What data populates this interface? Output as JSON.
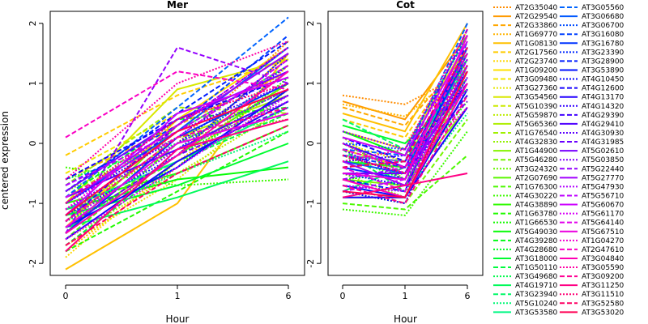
{
  "chart_data": {
    "type": "line",
    "ylabel": "centered expression",
    "xlabel": "Hour",
    "x_ticks": [
      "0",
      "1",
      "6"
    ],
    "y_ticks": [
      "-2",
      "-1",
      "0",
      "1",
      "2"
    ],
    "ylim": [
      -2.2,
      2.2
    ],
    "grid": false,
    "legend_placement": "right",
    "panels": [
      {
        "title": "Mer"
      },
      {
        "title": "Cot"
      }
    ],
    "legend_col1": [
      {
        "label": "AT2G35040",
        "color": "#ff8c00",
        "dash": "dotted"
      },
      {
        "label": "AT2G29540",
        "color": "#ff9a00",
        "dash": "solid"
      },
      {
        "label": "AT2G33860",
        "color": "#ffa800",
        "dash": "dashed"
      },
      {
        "label": "AT1G69770",
        "color": "#ffb400",
        "dash": "dotted"
      },
      {
        "label": "AT1G08130",
        "color": "#ffc000",
        "dash": "solid"
      },
      {
        "label": "AT2G17560",
        "color": "#ffcc00",
        "dash": "dashed"
      },
      {
        "label": "AT2G23740",
        "color": "#ffd700",
        "dash": "dotted"
      },
      {
        "label": "AT1G09200",
        "color": "#ffe000",
        "dash": "solid"
      },
      {
        "label": "AT3G09480",
        "color": "#f2e600",
        "dash": "dashed"
      },
      {
        "label": "AT3G27360",
        "color": "#e6e600",
        "dash": "dotted"
      },
      {
        "label": "AT3G54560",
        "color": "#d8e800",
        "dash": "solid"
      },
      {
        "label": "AT5G10390",
        "color": "#cbea00",
        "dash": "dashed"
      },
      {
        "label": "AT5G59870",
        "color": "#bdec00",
        "dash": "dotted"
      },
      {
        "label": "AT5G65360",
        "color": "#aeee00",
        "dash": "solid"
      },
      {
        "label": "AT1G76540",
        "color": "#a0f000",
        "dash": "dashed"
      },
      {
        "label": "AT4G32830",
        "color": "#92f200",
        "dash": "dotted"
      },
      {
        "label": "AT1G44900",
        "color": "#84f400",
        "dash": "solid"
      },
      {
        "label": "AT5G46280",
        "color": "#76f500",
        "dash": "dashed"
      },
      {
        "label": "AT3G24320",
        "color": "#68f600",
        "dash": "dotted"
      },
      {
        "label": "AT2G07690",
        "color": "#5af700",
        "dash": "solid"
      },
      {
        "label": "AT1G76300",
        "color": "#4cf800",
        "dash": "dashed"
      },
      {
        "label": "AT4G30220",
        "color": "#3ef900",
        "dash": "dotted"
      },
      {
        "label": "AT4G38890",
        "color": "#30fa00",
        "dash": "solid"
      },
      {
        "label": "AT1G63780",
        "color": "#22fb00",
        "dash": "dashed"
      },
      {
        "label": "AT1G66530",
        "color": "#14fb00",
        "dash": "dotted"
      },
      {
        "label": "AT5G49030",
        "color": "#08fc08",
        "dash": "solid"
      },
      {
        "label": "AT4G39280",
        "color": "#00fc14",
        "dash": "dashed"
      },
      {
        "label": "AT4G28680",
        "color": "#00fc22",
        "dash": "dotted"
      },
      {
        "label": "AT3G18000",
        "color": "#00fc30",
        "dash": "solid"
      },
      {
        "label": "AT1G50110",
        "color": "#00fb3e",
        "dash": "dashed"
      },
      {
        "label": "AT3G49680",
        "color": "#00fb4c",
        "dash": "dotted"
      },
      {
        "label": "AT4G19710",
        "color": "#00fa5a",
        "dash": "solid"
      },
      {
        "label": "AT3G23940",
        "color": "#00f968",
        "dash": "dashed"
      },
      {
        "label": "AT5G10240",
        "color": "#00f876",
        "dash": "dotted"
      },
      {
        "label": "AT3G53580",
        "color": "#00f784",
        "dash": "solid"
      }
    ],
    "legend_col2": [
      {
        "label": "AT3G05560",
        "color": "#0064ff",
        "dash": "dashed"
      },
      {
        "label": "AT3G06680",
        "color": "#0058ff",
        "dash": "solid"
      },
      {
        "label": "AT3G06700",
        "color": "#004cff",
        "dash": "dotted"
      },
      {
        "label": "AT3G16080",
        "color": "#0040ff",
        "dash": "dashed"
      },
      {
        "label": "AT3G16780",
        "color": "#0034ff",
        "dash": "solid"
      },
      {
        "label": "AT3G23390",
        "color": "#0028ff",
        "dash": "dotted"
      },
      {
        "label": "AT3G28900",
        "color": "#001cff",
        "dash": "dashed"
      },
      {
        "label": "AT3G53890",
        "color": "#0010ff",
        "dash": "solid"
      },
      {
        "label": "AT4G10450",
        "color": "#0a08ff",
        "dash": "dotted"
      },
      {
        "label": "AT4G12600",
        "color": "#1600ff",
        "dash": "dashed"
      },
      {
        "label": "AT4G13170",
        "color": "#2400ff",
        "dash": "solid"
      },
      {
        "label": "AT4G14320",
        "color": "#3200ff",
        "dash": "dotted"
      },
      {
        "label": "AT4G29390",
        "color": "#4000ff",
        "dash": "dashed"
      },
      {
        "label": "AT4G29410",
        "color": "#4e00ff",
        "dash": "solid"
      },
      {
        "label": "AT4G30930",
        "color": "#5c00ff",
        "dash": "dotted"
      },
      {
        "label": "AT4G31985",
        "color": "#6a00ff",
        "dash": "dashed"
      },
      {
        "label": "AT5G02610",
        "color": "#7800ff",
        "dash": "solid"
      },
      {
        "label": "AT5G03850",
        "color": "#8600ff",
        "dash": "dotted"
      },
      {
        "label": "AT5G22440",
        "color": "#9400ff",
        "dash": "dashed"
      },
      {
        "label": "AT5G27770",
        "color": "#a200ff",
        "dash": "solid"
      },
      {
        "label": "AT5G47930",
        "color": "#b000ff",
        "dash": "dotted"
      },
      {
        "label": "AT5G56710",
        "color": "#be00ff",
        "dash": "dashed"
      },
      {
        "label": "AT5G60670",
        "color": "#cc00ff",
        "dash": "solid"
      },
      {
        "label": "AT5G61170",
        "color": "#d800f6",
        "dash": "dotted"
      },
      {
        "label": "AT5G64140",
        "color": "#e200ec",
        "dash": "dashed"
      },
      {
        "label": "AT5G67510",
        "color": "#ec00e0",
        "dash": "solid"
      },
      {
        "label": "AT1G04270",
        "color": "#f400d2",
        "dash": "dotted"
      },
      {
        "label": "AT2G47610",
        "color": "#fa00c4",
        "dash": "dashed"
      },
      {
        "label": "AT3G04840",
        "color": "#fe00b4",
        "dash": "solid"
      },
      {
        "label": "AT3G05590",
        "color": "#ff00a4",
        "dash": "dotted"
      },
      {
        "label": "AT3G09200",
        "color": "#ff0094",
        "dash": "dashed"
      },
      {
        "label": "AT3G11250",
        "color": "#ff0084",
        "dash": "solid"
      },
      {
        "label": "AT3G11510",
        "color": "#ff0074",
        "dash": "dotted"
      },
      {
        "label": "AT3G52580",
        "color": "#ff0064",
        "dash": "dashed"
      },
      {
        "label": "AT3G53020",
        "color": "#ff0054",
        "dash": "solid"
      }
    ],
    "mer_series": [
      [
        -1.2,
        0.0,
        1.7
      ],
      [
        -1.5,
        -0.2,
        1.5
      ],
      [
        -0.6,
        0.3,
        1.2
      ],
      [
        -1.8,
        -0.4,
        1.3
      ],
      [
        -2.1,
        -1.0,
        1.5
      ],
      [
        -0.2,
        0.8,
        1.4
      ],
      [
        -1.9,
        -0.3,
        1.0
      ],
      [
        -1.4,
        0.4,
        1.6
      ],
      [
        -0.5,
        0.5,
        1.1
      ],
      [
        -1.7,
        -0.6,
        0.9
      ],
      [
        -1.0,
        0.9,
        1.4
      ],
      [
        -0.9,
        0.2,
        1.3
      ],
      [
        -1.6,
        -0.5,
        0.6
      ],
      [
        -1.3,
        0.1,
        0.8
      ],
      [
        -0.7,
        0.6,
        0.5
      ],
      [
        -1.1,
        -0.1,
        1.2
      ],
      [
        -1.5,
        0.3,
        1.5
      ],
      [
        -1.2,
        -0.3,
        0.7
      ],
      [
        -0.8,
        0.1,
        0.4
      ],
      [
        -1.4,
        -0.2,
        1.0
      ],
      [
        -1.6,
        0.0,
        0.9
      ],
      [
        -0.4,
        -0.7,
        -0.6
      ],
      [
        -1.0,
        -0.5,
        0.3
      ],
      [
        -1.8,
        -0.8,
        0.2
      ],
      [
        -1.3,
        -0.4,
        1.1
      ],
      [
        -1.1,
        -0.6,
        -0.4
      ],
      [
        -0.9,
        0.4,
        0.6
      ],
      [
        -1.5,
        -0.2,
        0.8
      ],
      [
        -1.2,
        -0.7,
        0.0
      ],
      [
        -1.7,
        -0.3,
        0.5
      ],
      [
        -0.6,
        0.0,
        0.9
      ],
      [
        -1.4,
        -0.9,
        -0.3
      ],
      [
        -1.0,
        0.2,
        1.3
      ],
      [
        -1.3,
        -0.5,
        0.2
      ],
      [
        -1.1,
        -0.3,
        0.6
      ],
      [
        -0.9,
        0.6,
        2.1
      ],
      [
        -1.0,
        0.2,
        1.6
      ],
      [
        -1.3,
        -0.1,
        1.2
      ],
      [
        -0.7,
        0.3,
        1.8
      ],
      [
        -1.5,
        0.1,
        1.0
      ],
      [
        -1.2,
        -0.2,
        1.5
      ],
      [
        -0.8,
        0.5,
        1.7
      ],
      [
        -1.4,
        -0.4,
        0.9
      ],
      [
        -1.1,
        0.0,
        1.3
      ],
      [
        -0.6,
        0.4,
        1.1
      ],
      [
        -1.6,
        -0.3,
        0.7
      ],
      [
        -1.0,
        0.1,
        1.4
      ],
      [
        -1.3,
        0.3,
        1.6
      ],
      [
        -0.9,
        -0.1,
        0.8
      ],
      [
        -1.2,
        0.2,
        1.0
      ],
      [
        -1.4,
        -0.2,
        0.6
      ],
      [
        -0.8,
        0.4,
        1.2
      ],
      [
        -1.1,
        0.0,
        0.9
      ],
      [
        -1.5,
        1.6,
        1.0
      ],
      [
        -1.0,
        0.3,
        1.5
      ],
      [
        -1.3,
        -0.1,
        0.7
      ],
      [
        -0.7,
        0.2,
        1.3
      ],
      [
        -1.2,
        0.5,
        1.1
      ],
      [
        -1.6,
        -0.4,
        0.8
      ],
      [
        -0.9,
        0.1,
        1.4
      ],
      [
        -1.4,
        0.0,
        0.5
      ],
      [
        -1.1,
        0.3,
        1.6
      ],
      [
        0.1,
        1.2,
        0.9
      ],
      [
        -1.5,
        -0.2,
        1.2
      ],
      [
        -0.6,
        1.0,
        1.7
      ],
      [
        -1.3,
        0.1,
        0.6
      ],
      [
        -1.8,
        -0.1,
        0.4
      ],
      [
        -1.0,
        0.4,
        1.0
      ],
      [
        -1.7,
        -0.5,
        0.3
      ],
      [
        -1.2,
        0.2,
        0.9
      ]
    ],
    "cot_series": [
      [
        0.8,
        0.65,
        1.2
      ],
      [
        0.7,
        0.4,
        1.8
      ],
      [
        0.6,
        0.3,
        1.5
      ],
      [
        0.65,
        0.45,
        1.3
      ],
      [
        0.5,
        0.2,
        2.0
      ],
      [
        0.4,
        0.1,
        1.6
      ],
      [
        0.3,
        0.0,
        1.4
      ],
      [
        0.2,
        -0.1,
        1.7
      ],
      [
        0.1,
        -0.2,
        1.0
      ],
      [
        0.0,
        -0.3,
        1.9
      ],
      [
        -0.1,
        -0.4,
        1.2
      ],
      [
        -0.2,
        -0.5,
        0.8
      ],
      [
        0.1,
        -0.6,
        1.6
      ],
      [
        -0.3,
        -0.7,
        1.3
      ],
      [
        -0.4,
        -0.8,
        1.0
      ],
      [
        -0.5,
        -0.9,
        1.8
      ],
      [
        -0.6,
        -0.7,
        0.6
      ],
      [
        -0.7,
        -1.0,
        0.4
      ],
      [
        -0.8,
        -1.0,
        1.2
      ],
      [
        -0.9,
        -0.9,
        0.9
      ],
      [
        -1.0,
        -1.1,
        -0.2
      ],
      [
        -1.1,
        -1.2,
        0.2
      ],
      [
        -0.3,
        -0.4,
        1.5
      ],
      [
        0.0,
        -0.5,
        1.1
      ],
      [
        -0.2,
        -0.6,
        0.7
      ],
      [
        0.2,
        -0.2,
        1.4
      ],
      [
        -0.4,
        -0.3,
        1.9
      ],
      [
        -0.6,
        -0.5,
        1.2
      ],
      [
        0.3,
        0.0,
        0.9
      ],
      [
        -0.1,
        -0.8,
        1.6
      ],
      [
        -0.5,
        -0.6,
        1.0
      ],
      [
        -0.8,
        -0.4,
        1.4
      ],
      [
        0.4,
        -0.1,
        1.8
      ],
      [
        -0.7,
        -0.8,
        0.5
      ],
      [
        -0.2,
        -0.3,
        1.3
      ],
      [
        -0.1,
        -0.2,
        2.0
      ],
      [
        -0.3,
        -0.5,
        1.6
      ],
      [
        0.0,
        -0.1,
        1.8
      ],
      [
        -0.2,
        -0.4,
        1.2
      ],
      [
        -0.4,
        -0.6,
        1.5
      ],
      [
        -0.5,
        -0.7,
        1.1
      ],
      [
        -0.6,
        -0.8,
        1.7
      ],
      [
        -0.7,
        -0.9,
        0.9
      ],
      [
        -0.8,
        -1.0,
        1.3
      ],
      [
        0.1,
        -0.3,
        1.0
      ],
      [
        -0.9,
        -0.9,
        0.6
      ],
      [
        -0.3,
        -0.2,
        1.4
      ],
      [
        -0.2,
        -0.5,
        0.8
      ],
      [
        0.0,
        -0.4,
        1.6
      ],
      [
        -0.1,
        -0.6,
        1.2
      ],
      [
        -0.4,
        -0.3,
        1.9
      ],
      [
        -0.5,
        -0.5,
        1.0
      ],
      [
        0.2,
        -0.1,
        1.5
      ],
      [
        -0.6,
        -0.4,
        0.7
      ],
      [
        -0.3,
        -0.7,
        1.3
      ],
      [
        -0.7,
        -0.8,
        1.1
      ],
      [
        -0.8,
        -0.6,
        1.4
      ],
      [
        0.1,
        -0.2,
        1.7
      ],
      [
        -0.2,
        -0.3,
        0.9
      ],
      [
        -0.4,
        -0.8,
        1.2
      ],
      [
        -0.5,
        -0.6,
        1.8
      ],
      [
        0.0,
        -0.5,
        0.6
      ],
      [
        -0.1,
        -0.4,
        1.5
      ],
      [
        -0.6,
        -0.9,
        1.0
      ],
      [
        -0.3,
        -0.1,
        1.9
      ],
      [
        -0.7,
        -1.0,
        0.8
      ],
      [
        -0.9,
        -0.7,
        -0.5
      ],
      [
        -0.2,
        -0.5,
        1.3
      ],
      [
        -0.4,
        -0.3,
        1.6
      ],
      [
        -0.8,
        -0.9,
        1.2
      ]
    ]
  }
}
